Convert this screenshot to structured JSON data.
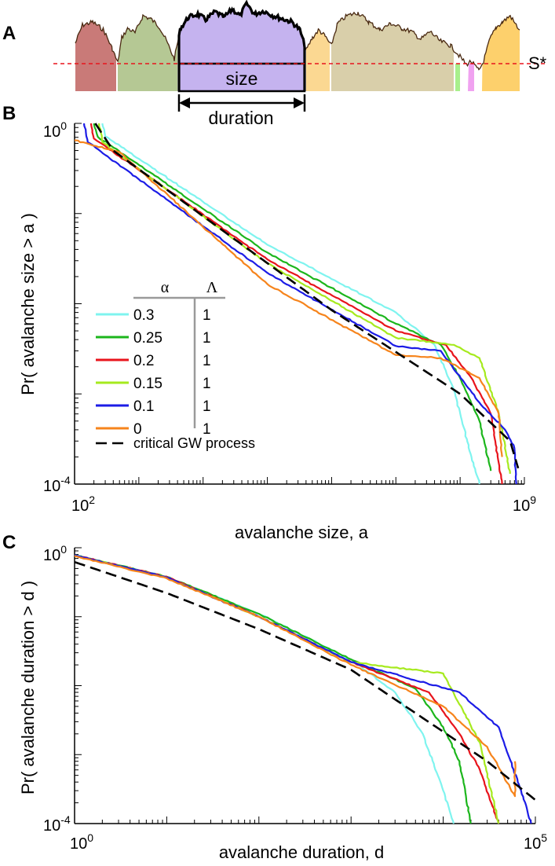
{
  "panels": {
    "a": {
      "label": "A",
      "threshold_label": "S*",
      "size_label": "size",
      "duration_label": "duration"
    },
    "b": {
      "label": "B"
    },
    "c": {
      "label": "C"
    }
  },
  "colors": {
    "cyan": "#7ff4ef",
    "green": "#1cb61c",
    "red": "#e8141c",
    "lime": "#a6ea1e",
    "blue": "#1c1ce6",
    "orange": "#f6841c",
    "dashed": "#000000",
    "threshold": "#e8141c",
    "trace": "#4a2a12"
  },
  "panel_a_segments": [
    {
      "name": "segment-1",
      "color": "#c97a78"
    },
    {
      "name": "segment-2",
      "color": "#b5c894"
    },
    {
      "name": "segment-avalanche",
      "color": "#c5b3ef"
    },
    {
      "name": "segment-4",
      "color": "#fbd892"
    },
    {
      "name": "segment-5",
      "color": "#d9cfaa"
    },
    {
      "name": "segment-6",
      "color": "#a8f08c"
    },
    {
      "name": "segment-7",
      "color": "#f0a2f0"
    },
    {
      "name": "segment-8",
      "color": "#fdd06c"
    }
  ],
  "legend": {
    "alpha_header": "α",
    "lambda_header": "Λ",
    "entries": [
      {
        "alpha": "0.3",
        "lambda": "1"
      },
      {
        "alpha": "0.25",
        "lambda": "1"
      },
      {
        "alpha": "0.2",
        "lambda": "1"
      },
      {
        "alpha": "0.15",
        "lambda": "1"
      },
      {
        "alpha": "0.1",
        "lambda": "1"
      },
      {
        "alpha": "0",
        "lambda": "1"
      }
    ],
    "dashed_label": "critical GW process"
  },
  "chart_data": [
    {
      "type": "line",
      "panel": "B",
      "xscale": "log",
      "yscale": "log",
      "xlim": [
        100,
        1000000000
      ],
      "ylim": [
        0.0001,
        1
      ],
      "xlabel": "avalanche size, a",
      "ylabel": "Pr( avalanche size > a )",
      "x_ticks": [
        {
          "base": "10",
          "exp": "2"
        },
        {
          "base": "10",
          "exp": "9"
        }
      ],
      "y_ticks": [
        {
          "base": "10",
          "exp": "0"
        },
        {
          "base": "10",
          "exp": "-4"
        }
      ],
      "series": [
        {
          "name": "α=0.3, Λ=1",
          "color_key": "cyan",
          "points": [
            [
              270,
              1
            ],
            [
              300,
              0.72
            ],
            [
              100000,
              0.045
            ],
            [
              10000000,
              0.008
            ],
            [
              40000000,
              0.0035
            ],
            [
              80000000,
              0.0011
            ],
            [
              150000000,
              0.0002
            ],
            [
              200000000,
              0.0001
            ]
          ]
        },
        {
          "name": "α=0.25, Λ=1",
          "color_key": "green",
          "points": [
            [
              200,
              1
            ],
            [
              230,
              0.71
            ],
            [
              100000,
              0.037
            ],
            [
              10000000,
              0.006
            ],
            [
              50000000,
              0.0035
            ],
            [
              100000000,
              0.0015
            ],
            [
              200000000,
              0.0005
            ],
            [
              300000000,
              0.00014
            ]
          ]
        },
        {
          "name": "α=0.2, Λ=1",
          "color_key": "red",
          "points": [
            [
              180,
              1
            ],
            [
              200,
              0.68
            ],
            [
              100000,
              0.031
            ],
            [
              10000000,
              0.005
            ],
            [
              60000000,
              0.0035
            ],
            [
              150000000,
              0.0015
            ],
            [
              300000000,
              0.0006
            ],
            [
              450000000,
              0.0001
            ]
          ]
        },
        {
          "name": "α=0.15, Λ=1",
          "color_key": "lime",
          "points": [
            [
              240,
              1
            ],
            [
              270,
              0.62
            ],
            [
              100000,
              0.028
            ],
            [
              10000000,
              0.0042
            ],
            [
              80000000,
              0.0035
            ],
            [
              200000000,
              0.0025
            ],
            [
              400000000,
              0.0006
            ],
            [
              600000000,
              0.00013
            ]
          ]
        },
        {
          "name": "α=0.1, Λ=1",
          "color_key": "blue",
          "points": [
            [
              140,
              1
            ],
            [
              160,
              0.62
            ],
            [
              100000,
              0.022
            ],
            [
              10000000,
              0.0034
            ],
            [
              50000000,
              0.003
            ],
            [
              200000000,
              0.0008
            ],
            [
              500000000,
              0.0004
            ],
            [
              700000000,
              0.00025
            ],
            [
              750000000,
              0.0001
            ]
          ]
        },
        {
          "name": "α=0, Λ=1",
          "color_key": "orange",
          "points": [
            [
              100,
              0.65
            ],
            [
              500,
              0.48
            ],
            [
              100000,
              0.0165
            ],
            [
              10000000,
              0.0027
            ],
            [
              50000000,
              0.0025
            ],
            [
              200000000,
              0.0015
            ],
            [
              400000000,
              0.0006
            ],
            [
              450000000,
              0.0002
            ]
          ]
        },
        {
          "name": "critical GW process",
          "color_key": "dashed",
          "dashed": true,
          "points": [
            [
              210,
              1
            ],
            [
              400,
              0.5
            ],
            [
              1000000,
              0.0085
            ],
            [
              100000000,
              0.001
            ],
            [
              600000000,
              0.0003
            ],
            [
              800000000,
              0.00015
            ]
          ]
        }
      ]
    },
    {
      "type": "line",
      "panel": "C",
      "xscale": "log",
      "yscale": "log",
      "xlim": [
        1,
        100000
      ],
      "ylim": [
        0.0001,
        1
      ],
      "xlabel": "avalanche duration, d",
      "ylabel": "Pr( avalanche duration > d )",
      "x_ticks": [
        {
          "base": "10",
          "exp": "0"
        },
        {
          "base": "10",
          "exp": "5"
        }
      ],
      "y_ticks": [
        {
          "base": "10",
          "exp": "0"
        },
        {
          "base": "10",
          "exp": "-4"
        }
      ],
      "series": [
        {
          "name": "α=0.3, Λ=1",
          "color_key": "cyan",
          "points": [
            [
              1,
              0.78
            ],
            [
              10,
              0.38
            ],
            [
              100,
              0.11
            ],
            [
              1000,
              0.024
            ],
            [
              3000,
              0.008
            ],
            [
              6000,
              0.002
            ],
            [
              10000,
              0.0003
            ],
            [
              13000,
              0.0001
            ]
          ]
        },
        {
          "name": "α=0.25, Λ=1",
          "color_key": "green",
          "points": [
            [
              1,
              0.78
            ],
            [
              10,
              0.38
            ],
            [
              100,
              0.11
            ],
            [
              1000,
              0.024
            ],
            [
              5000,
              0.009
            ],
            [
              10000,
              0.0025
            ],
            [
              15000,
              0.0008
            ],
            [
              20000,
              0.0001
            ]
          ]
        },
        {
          "name": "α=0.2, Λ=1",
          "color_key": "red",
          "points": [
            [
              1,
              0.78
            ],
            [
              10,
              0.38
            ],
            [
              100,
              0.1
            ],
            [
              1000,
              0.022
            ],
            [
              7000,
              0.008
            ],
            [
              15000,
              0.002
            ],
            [
              25000,
              0.0006
            ],
            [
              40000,
              0.0001
            ]
          ]
        },
        {
          "name": "α=0.15, Λ=1",
          "color_key": "lime",
          "points": [
            [
              1,
              0.78
            ],
            [
              10,
              0.37
            ],
            [
              100,
              0.1
            ],
            [
              1000,
              0.022
            ],
            [
              10000,
              0.015
            ],
            [
              25000,
              0.0015
            ],
            [
              40000,
              0.0001
            ]
          ]
        },
        {
          "name": "α=0.1, Λ=1",
          "color_key": "blue",
          "points": [
            [
              1,
              0.78
            ],
            [
              10,
              0.37
            ],
            [
              100,
              0.1
            ],
            [
              1000,
              0.022
            ],
            [
              15000,
              0.008
            ],
            [
              40000,
              0.0025
            ],
            [
              70000,
              0.0003
            ],
            [
              90000,
              0.0001
            ]
          ]
        },
        {
          "name": "α=0, Λ=1",
          "color_key": "orange",
          "points": [
            [
              1,
              0.76
            ],
            [
              10,
              0.36
            ],
            [
              100,
              0.1
            ],
            [
              1000,
              0.02
            ],
            [
              10000,
              0.005
            ],
            [
              30000,
              0.0013
            ],
            [
              60000,
              0.00025
            ],
            [
              60000,
              0.0008
            ]
          ]
        },
        {
          "name": "critical GW process",
          "color_key": "dashed",
          "dashed": true,
          "points": [
            [
              1,
              0.62
            ],
            [
              10,
              0.22
            ],
            [
              100,
              0.066
            ],
            [
              1000,
              0.017
            ],
            [
              5000,
              0.004
            ],
            [
              30000,
              0.0008
            ],
            [
              100000,
              0.00022
            ]
          ]
        }
      ]
    }
  ]
}
